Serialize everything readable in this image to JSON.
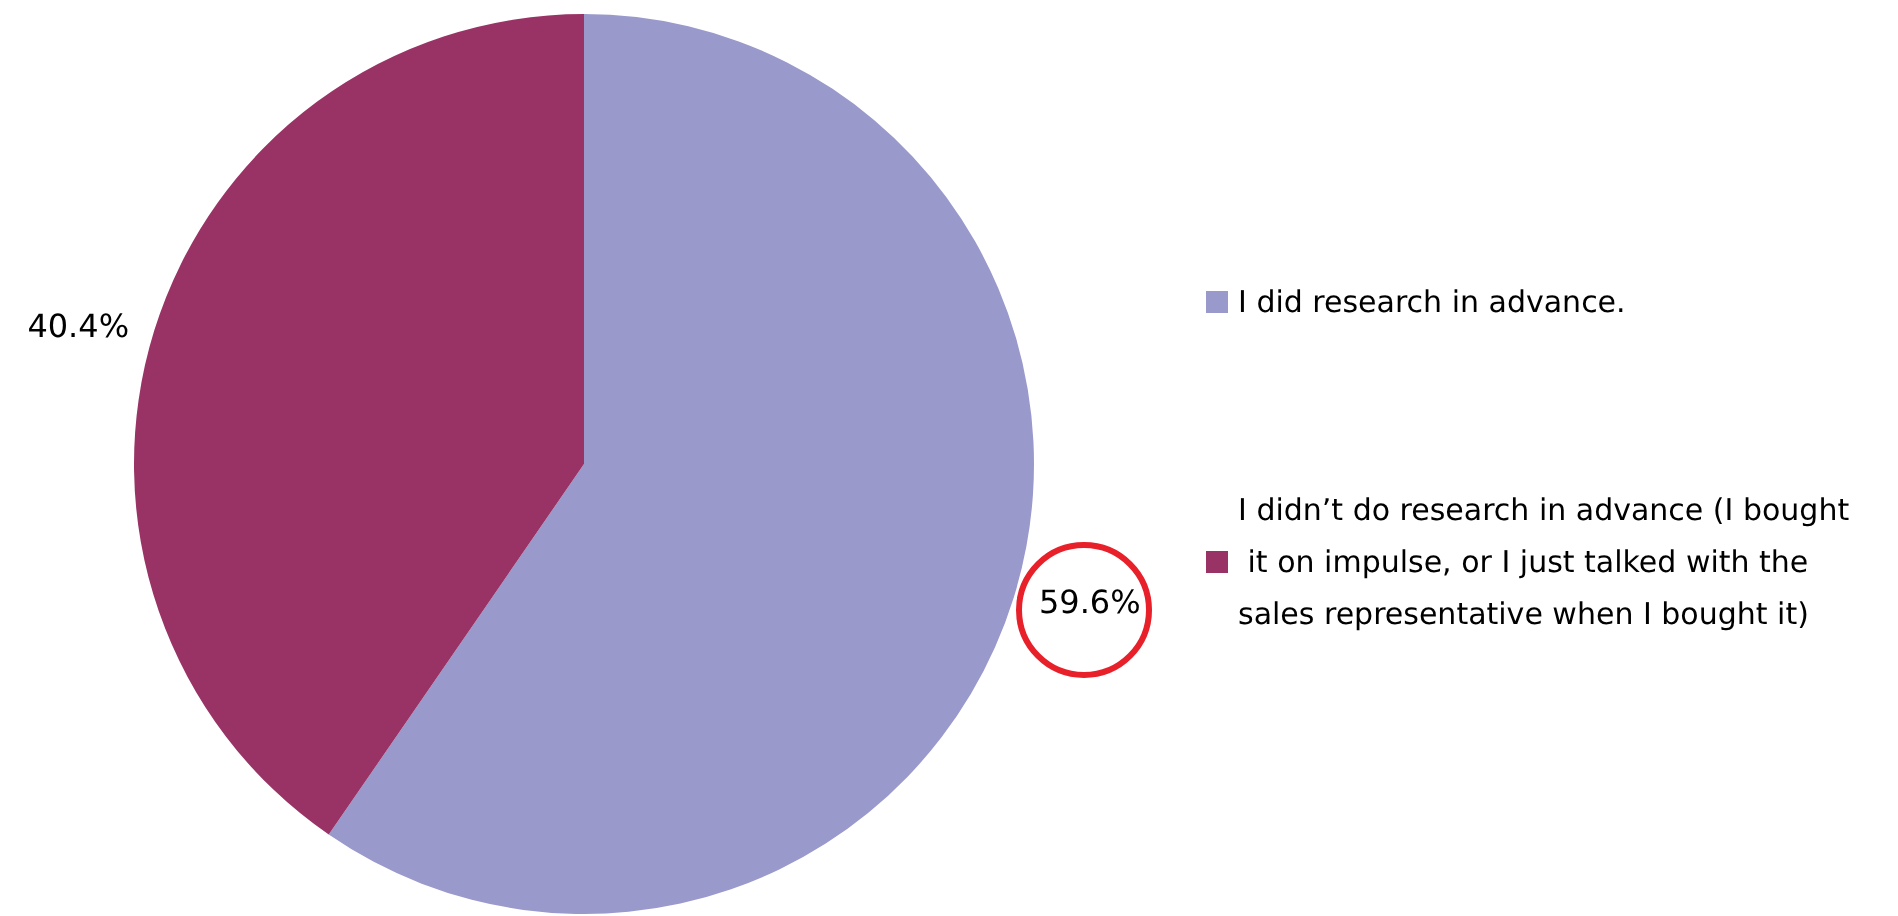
{
  "chart_data": {
    "type": "pie",
    "categories": [
      "I did research in advance.",
      "I didn’t do research in advance (I bought it on impulse, or I just talked with the sales representative when I bought it)"
    ],
    "values": [
      59.6,
      40.4
    ],
    "colors": [
      "#9999cc",
      "#993366"
    ],
    "value_labels": [
      "59.6%",
      "40.4%"
    ],
    "legend": "right"
  }
}
